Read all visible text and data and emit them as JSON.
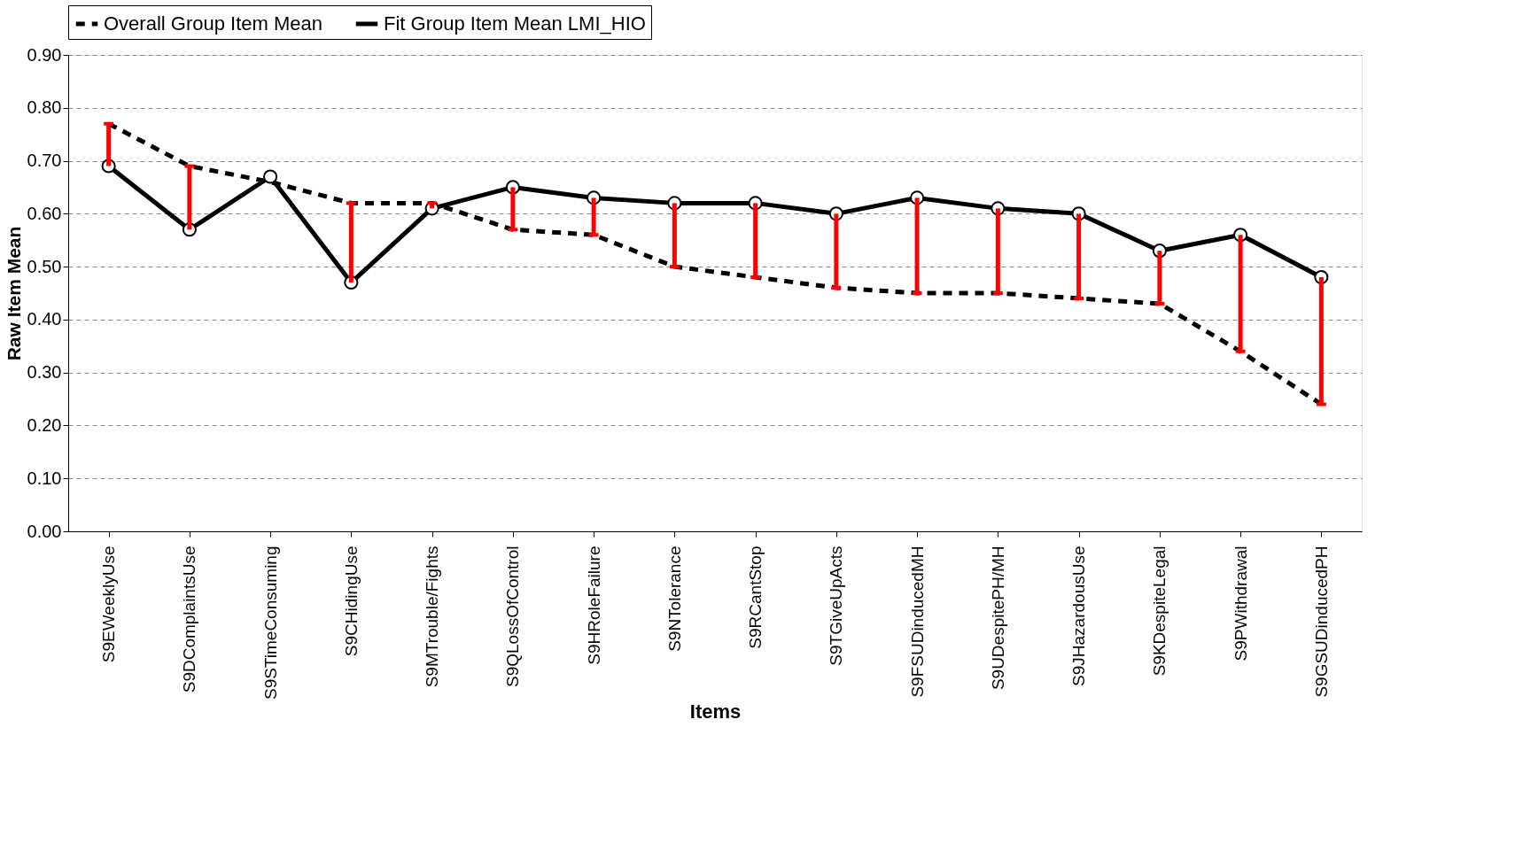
{
  "chart_data": {
    "type": "line",
    "xlabel": "Items",
    "ylabel": "Raw Item Mean",
    "categories": [
      "S9EWeeklyUse",
      "S9DComplaintsUse",
      "S9STimeConsuming",
      "S9CHidingUse",
      "S9MTrouble/Fights",
      "S9QLossOfControl",
      "S9HRoleFailure",
      "S9NTolerance",
      "S9RCantStop",
      "S9TGiveUpActs",
      "S9FSUDinducedMH",
      "S9UDespitePH/MH",
      "S9JHazardousUse",
      "S9KDespiteLegal",
      "S9PWithdrawal",
      "S9GSUDinducedPH"
    ],
    "series": [
      {
        "name": "Overall  Group Item Mean",
        "color": "#000000",
        "line_style": "dashed",
        "marker": "none",
        "values": [
          0.77,
          0.69,
          0.66,
          0.62,
          0.62,
          0.57,
          0.56,
          0.5,
          0.48,
          0.46,
          0.45,
          0.45,
          0.44,
          0.43,
          0.34,
          0.24
        ],
        "errors": [
          [
            0.69,
            0.77
          ],
          [
            0.57,
            0.69
          ],
          null,
          [
            0.47,
            0.62
          ],
          [
            0.61,
            0.62
          ],
          [
            0.57,
            0.65
          ],
          [
            0.56,
            0.63
          ],
          [
            0.5,
            0.62
          ],
          [
            0.48,
            0.62
          ],
          [
            0.46,
            0.6
          ],
          [
            0.45,
            0.63
          ],
          [
            0.45,
            0.61
          ],
          [
            0.44,
            0.6
          ],
          [
            0.43,
            0.53
          ],
          [
            0.34,
            0.56
          ],
          [
            0.24,
            0.48
          ]
        ]
      },
      {
        "name": "Fit Group Item Mean LMI_HIO",
        "color": "#000000",
        "line_style": "solid",
        "marker": "circle",
        "values": [
          0.69,
          0.57,
          0.67,
          0.47,
          0.61,
          0.65,
          0.63,
          0.62,
          0.62,
          0.6,
          0.63,
          0.61,
          0.6,
          0.53,
          0.56,
          0.48
        ]
      }
    ],
    "ylim": [
      0,
      0.9
    ],
    "yticks": [
      {
        "value": 0,
        "label": "0.00"
      },
      {
        "value": 0.1,
        "label": "0.10"
      },
      {
        "value": 0.2,
        "label": "0.20"
      },
      {
        "value": 0.3,
        "label": "0.30"
      },
      {
        "value": 0.4,
        "label": "0.40"
      },
      {
        "value": 0.5,
        "label": "0.50"
      },
      {
        "value": 0.6,
        "label": "0.60"
      },
      {
        "value": 0.7,
        "label": "0.70"
      },
      {
        "value": 0.8,
        "label": "0.80"
      },
      {
        "value": 0.9,
        "label": "0.90"
      }
    ],
    "grid": "y",
    "legend": "top"
  }
}
